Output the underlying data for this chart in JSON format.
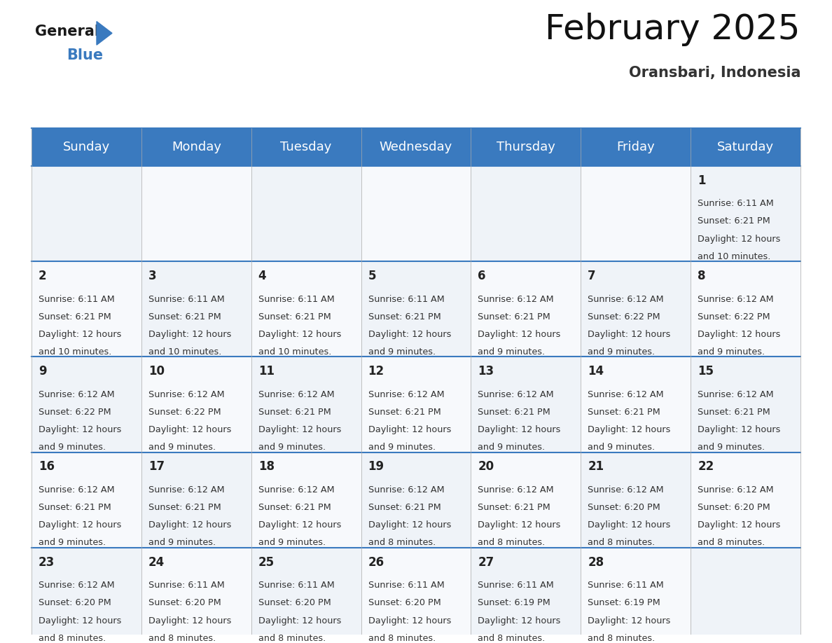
{
  "title": "February 2025",
  "subtitle": "Oransbari, Indonesia",
  "header_bg_color": "#3a7abf",
  "header_text_color": "#ffffff",
  "grid_line_color": "#3a7abf",
  "day_names": [
    "Sunday",
    "Monday",
    "Tuesday",
    "Wednesday",
    "Thursday",
    "Friday",
    "Saturday"
  ],
  "title_fontsize": 36,
  "subtitle_fontsize": 15,
  "day_header_fontsize": 13,
  "day_num_fontsize": 12,
  "info_fontsize": 9.2,
  "background_color": "#ffffff",
  "calendar_data": [
    {
      "day": 1,
      "col": 6,
      "row": 0,
      "sunrise": "6:11 AM",
      "sunset": "6:21 PM",
      "daylight_line1": "Daylight: 12 hours",
      "daylight_line2": "and 10 minutes."
    },
    {
      "day": 2,
      "col": 0,
      "row": 1,
      "sunrise": "6:11 AM",
      "sunset": "6:21 PM",
      "daylight_line1": "Daylight: 12 hours",
      "daylight_line2": "and 10 minutes."
    },
    {
      "day": 3,
      "col": 1,
      "row": 1,
      "sunrise": "6:11 AM",
      "sunset": "6:21 PM",
      "daylight_line1": "Daylight: 12 hours",
      "daylight_line2": "and 10 minutes."
    },
    {
      "day": 4,
      "col": 2,
      "row": 1,
      "sunrise": "6:11 AM",
      "sunset": "6:21 PM",
      "daylight_line1": "Daylight: 12 hours",
      "daylight_line2": "and 10 minutes."
    },
    {
      "day": 5,
      "col": 3,
      "row": 1,
      "sunrise": "6:11 AM",
      "sunset": "6:21 PM",
      "daylight_line1": "Daylight: 12 hours",
      "daylight_line2": "and 9 minutes."
    },
    {
      "day": 6,
      "col": 4,
      "row": 1,
      "sunrise": "6:12 AM",
      "sunset": "6:21 PM",
      "daylight_line1": "Daylight: 12 hours",
      "daylight_line2": "and 9 minutes."
    },
    {
      "day": 7,
      "col": 5,
      "row": 1,
      "sunrise": "6:12 AM",
      "sunset": "6:22 PM",
      "daylight_line1": "Daylight: 12 hours",
      "daylight_line2": "and 9 minutes."
    },
    {
      "day": 8,
      "col": 6,
      "row": 1,
      "sunrise": "6:12 AM",
      "sunset": "6:22 PM",
      "daylight_line1": "Daylight: 12 hours",
      "daylight_line2": "and 9 minutes."
    },
    {
      "day": 9,
      "col": 0,
      "row": 2,
      "sunrise": "6:12 AM",
      "sunset": "6:22 PM",
      "daylight_line1": "Daylight: 12 hours",
      "daylight_line2": "and 9 minutes."
    },
    {
      "day": 10,
      "col": 1,
      "row": 2,
      "sunrise": "6:12 AM",
      "sunset": "6:22 PM",
      "daylight_line1": "Daylight: 12 hours",
      "daylight_line2": "and 9 minutes."
    },
    {
      "day": 11,
      "col": 2,
      "row": 2,
      "sunrise": "6:12 AM",
      "sunset": "6:21 PM",
      "daylight_line1": "Daylight: 12 hours",
      "daylight_line2": "and 9 minutes."
    },
    {
      "day": 12,
      "col": 3,
      "row": 2,
      "sunrise": "6:12 AM",
      "sunset": "6:21 PM",
      "daylight_line1": "Daylight: 12 hours",
      "daylight_line2": "and 9 minutes."
    },
    {
      "day": 13,
      "col": 4,
      "row": 2,
      "sunrise": "6:12 AM",
      "sunset": "6:21 PM",
      "daylight_line1": "Daylight: 12 hours",
      "daylight_line2": "and 9 minutes."
    },
    {
      "day": 14,
      "col": 5,
      "row": 2,
      "sunrise": "6:12 AM",
      "sunset": "6:21 PM",
      "daylight_line1": "Daylight: 12 hours",
      "daylight_line2": "and 9 minutes."
    },
    {
      "day": 15,
      "col": 6,
      "row": 2,
      "sunrise": "6:12 AM",
      "sunset": "6:21 PM",
      "daylight_line1": "Daylight: 12 hours",
      "daylight_line2": "and 9 minutes."
    },
    {
      "day": 16,
      "col": 0,
      "row": 3,
      "sunrise": "6:12 AM",
      "sunset": "6:21 PM",
      "daylight_line1": "Daylight: 12 hours",
      "daylight_line2": "and 9 minutes."
    },
    {
      "day": 17,
      "col": 1,
      "row": 3,
      "sunrise": "6:12 AM",
      "sunset": "6:21 PM",
      "daylight_line1": "Daylight: 12 hours",
      "daylight_line2": "and 9 minutes."
    },
    {
      "day": 18,
      "col": 2,
      "row": 3,
      "sunrise": "6:12 AM",
      "sunset": "6:21 PM",
      "daylight_line1": "Daylight: 12 hours",
      "daylight_line2": "and 9 minutes."
    },
    {
      "day": 19,
      "col": 3,
      "row": 3,
      "sunrise": "6:12 AM",
      "sunset": "6:21 PM",
      "daylight_line1": "Daylight: 12 hours",
      "daylight_line2": "and 8 minutes."
    },
    {
      "day": 20,
      "col": 4,
      "row": 3,
      "sunrise": "6:12 AM",
      "sunset": "6:21 PM",
      "daylight_line1": "Daylight: 12 hours",
      "daylight_line2": "and 8 minutes."
    },
    {
      "day": 21,
      "col": 5,
      "row": 3,
      "sunrise": "6:12 AM",
      "sunset": "6:20 PM",
      "daylight_line1": "Daylight: 12 hours",
      "daylight_line2": "and 8 minutes."
    },
    {
      "day": 22,
      "col": 6,
      "row": 3,
      "sunrise": "6:12 AM",
      "sunset": "6:20 PM",
      "daylight_line1": "Daylight: 12 hours",
      "daylight_line2": "and 8 minutes."
    },
    {
      "day": 23,
      "col": 0,
      "row": 4,
      "sunrise": "6:12 AM",
      "sunset": "6:20 PM",
      "daylight_line1": "Daylight: 12 hours",
      "daylight_line2": "and 8 minutes."
    },
    {
      "day": 24,
      "col": 1,
      "row": 4,
      "sunrise": "6:11 AM",
      "sunset": "6:20 PM",
      "daylight_line1": "Daylight: 12 hours",
      "daylight_line2": "and 8 minutes."
    },
    {
      "day": 25,
      "col": 2,
      "row": 4,
      "sunrise": "6:11 AM",
      "sunset": "6:20 PM",
      "daylight_line1": "Daylight: 12 hours",
      "daylight_line2": "and 8 minutes."
    },
    {
      "day": 26,
      "col": 3,
      "row": 4,
      "sunrise": "6:11 AM",
      "sunset": "6:20 PM",
      "daylight_line1": "Daylight: 12 hours",
      "daylight_line2": "and 8 minutes."
    },
    {
      "day": 27,
      "col": 4,
      "row": 4,
      "sunrise": "6:11 AM",
      "sunset": "6:19 PM",
      "daylight_line1": "Daylight: 12 hours",
      "daylight_line2": "and 8 minutes."
    },
    {
      "day": 28,
      "col": 5,
      "row": 4,
      "sunrise": "6:11 AM",
      "sunset": "6:19 PM",
      "daylight_line1": "Daylight: 12 hours",
      "daylight_line2": "and 8 minutes."
    }
  ]
}
